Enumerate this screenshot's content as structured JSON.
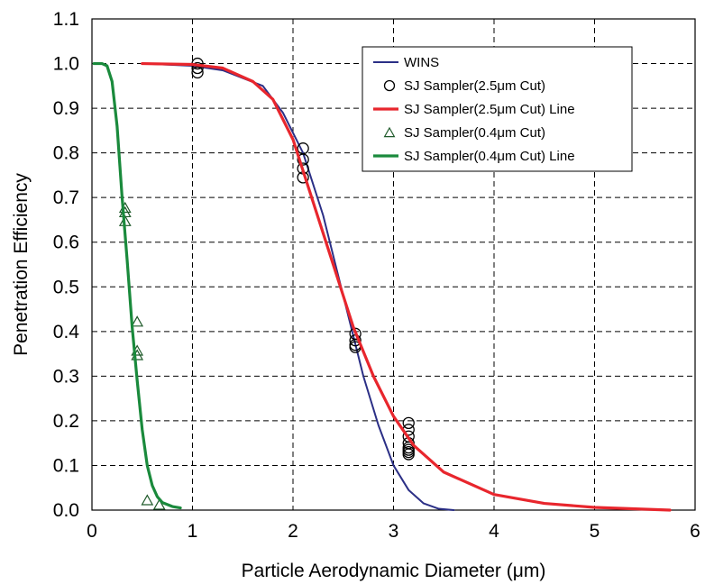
{
  "chart_data": {
    "type": "scatter",
    "title": "",
    "xlabel": "Particle Aerodynamic Diameter (μm)",
    "ylabel": "Penetration Efficiency",
    "xlim": [
      0,
      6
    ],
    "ylim": [
      0,
      1.1
    ],
    "xticks": [
      "0",
      "1",
      "2",
      "3",
      "4",
      "5",
      "6"
    ],
    "yticks": [
      "0.0",
      "0.1",
      "0.2",
      "0.3",
      "0.4",
      "0.5",
      "0.6",
      "0.7",
      "0.8",
      "0.9",
      "1.0",
      "1.1"
    ],
    "grid": true,
    "legend_position": "top-right",
    "series": [
      {
        "name": "WINS",
        "kind": "line",
        "color": "#2b2f86",
        "x": [
          0.5,
          1.0,
          1.3,
          1.7,
          1.9,
          2.1,
          2.3,
          2.5,
          2.7,
          2.85,
          3.0,
          3.15,
          3.3,
          3.45,
          3.6
        ],
        "y": [
          1.0,
          0.995,
          0.985,
          0.95,
          0.89,
          0.8,
          0.66,
          0.48,
          0.3,
          0.19,
          0.1,
          0.045,
          0.015,
          0.003,
          0.0
        ]
      },
      {
        "name": "SJ Sampler(2.5μm Cut)",
        "kind": "marker",
        "marker": "circle",
        "color": "#000000",
        "x": [
          1.05,
          1.05,
          1.05,
          2.1,
          2.1,
          2.1,
          2.1,
          2.62,
          2.62,
          2.62,
          2.62,
          3.15,
          3.15,
          3.15,
          3.15,
          3.15,
          3.15,
          3.15,
          3.15
        ],
        "y": [
          1.0,
          0.99,
          0.98,
          0.81,
          0.785,
          0.765,
          0.745,
          0.395,
          0.38,
          0.37,
          0.365,
          0.195,
          0.18,
          0.165,
          0.15,
          0.14,
          0.135,
          0.13,
          0.125
        ]
      },
      {
        "name": "SJ Sampler(2.5μm Cut) Line",
        "kind": "line",
        "color": "#e8262d",
        "x": [
          0.5,
          1.0,
          1.3,
          1.6,
          1.8,
          2.0,
          2.2,
          2.4,
          2.5,
          2.6,
          2.8,
          3.0,
          3.2,
          3.5,
          4.0,
          4.5,
          5.0,
          5.75
        ],
        "y": [
          1.0,
          0.998,
          0.99,
          0.96,
          0.92,
          0.83,
          0.69,
          0.55,
          0.48,
          0.41,
          0.3,
          0.21,
          0.145,
          0.085,
          0.035,
          0.015,
          0.006,
          0.0
        ]
      },
      {
        "name": "SJ Sampler(0.4μm Cut)",
        "kind": "marker",
        "marker": "triangle",
        "color": "#1f5a2a",
        "x": [
          0.33,
          0.33,
          0.33,
          0.45,
          0.45,
          0.45,
          0.55,
          0.67
        ],
        "y": [
          0.675,
          0.665,
          0.645,
          0.42,
          0.355,
          0.345,
          0.02,
          0.01
        ]
      },
      {
        "name": "SJ Sampler(0.4μm Cut) Line",
        "kind": "line",
        "color": "#1a8a3c",
        "x": [
          0.02,
          0.1,
          0.15,
          0.2,
          0.25,
          0.3,
          0.35,
          0.4,
          0.45,
          0.5,
          0.55,
          0.6,
          0.65,
          0.7,
          0.8,
          0.88
        ],
        "y": [
          1.0,
          1.0,
          0.995,
          0.96,
          0.86,
          0.7,
          0.56,
          0.41,
          0.29,
          0.18,
          0.1,
          0.055,
          0.03,
          0.017,
          0.008,
          0.005
        ]
      }
    ]
  }
}
